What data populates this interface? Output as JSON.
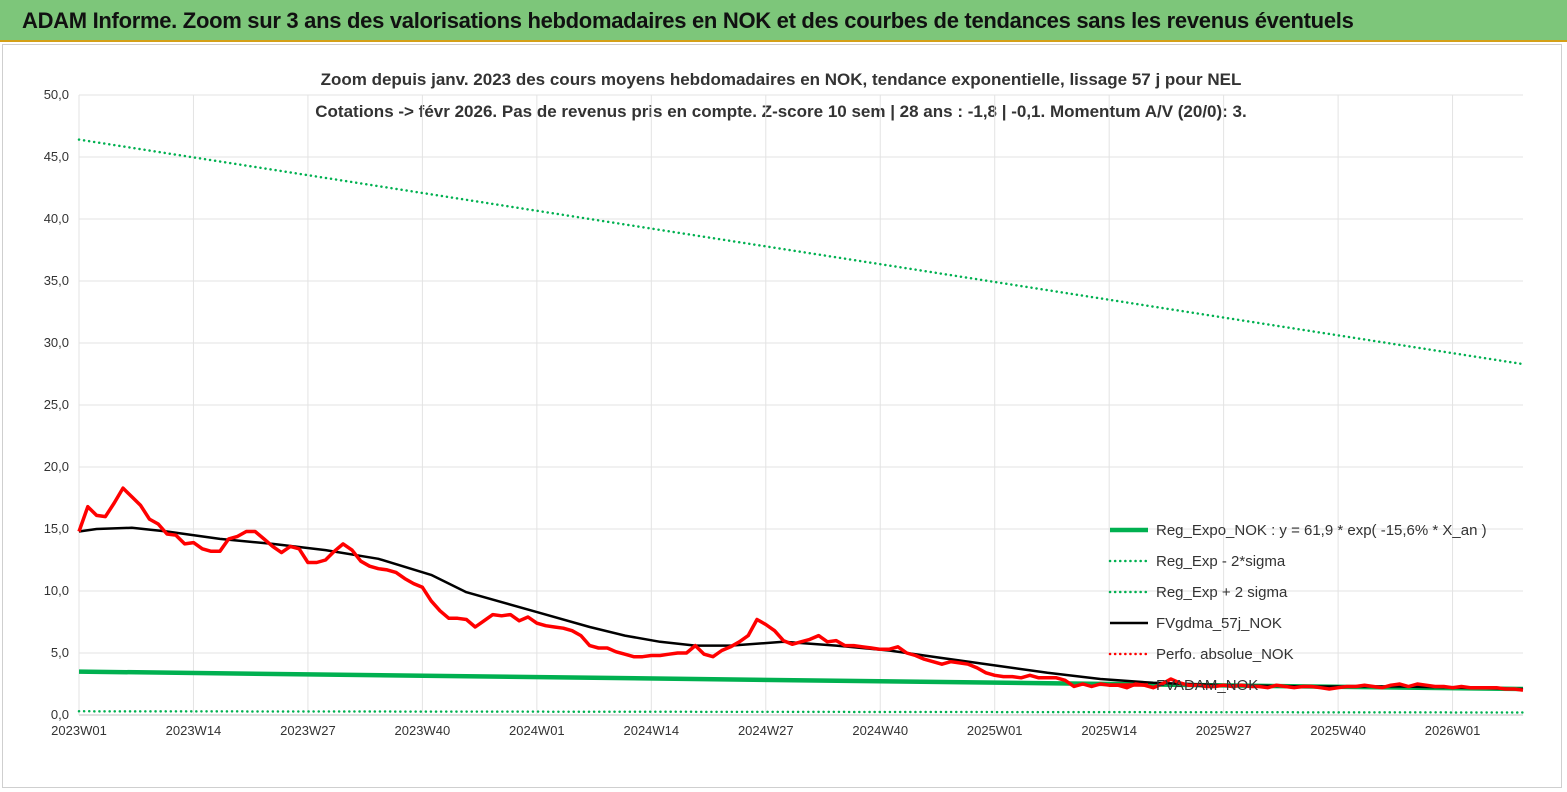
{
  "banner": {
    "title": "ADAM Informe. Zoom sur 3 ans des valorisations hebdomadaires en NOK et des courbes de tendances sans les revenus éventuels"
  },
  "chart_data": {
    "type": "line",
    "title_line1": "Zoom depuis janv. 2023 des cours moyens hebdomadaires en NOK, tendance exponentielle, lissage 57 j pour NEL",
    "title_line2": "Cotations -> févr 2026.  Pas de revenus pris en compte. Z-score 10 sem  | 28 ans : -1,8 | -0,1. Momentum A/V (20/0): 3.",
    "ylim": [
      0,
      50
    ],
    "y_ticks": [
      "0,0",
      "5,0",
      "10,0",
      "15,0",
      "20,0",
      "25,0",
      "30,0",
      "35,0",
      "40,0",
      "45,0",
      "50,0"
    ],
    "x_ticks": [
      "2023W01",
      "2023W14",
      "2023W27",
      "2023W40",
      "2024W01",
      "2024W14",
      "2024W27",
      "2024W40",
      "2025W01",
      "2025W14",
      "2025W27",
      "2025W40",
      "2026W01"
    ],
    "n_weeks": 165,
    "grid": true,
    "legend_position": "bottom-right",
    "series": [
      {
        "name": "Reg_Expo_NOK : y = 61,9 * exp( -15,6% *  X_an )",
        "color": "#00b050",
        "style": "solid",
        "width": 4.5,
        "x": [
          0,
          164
        ],
        "y": [
          3.5,
          2.1
        ]
      },
      {
        "name": "Reg_Exp - 2*sigma",
        "color": "#00b050",
        "style": "dotted",
        "width": 2.5,
        "x": [
          0,
          164
        ],
        "y": [
          0.3,
          0.2
        ]
      },
      {
        "name": "Reg_Exp + 2 sigma",
        "color": "#00b050",
        "style": "dotted",
        "width": 2.5,
        "x": [
          0,
          164
        ],
        "y": [
          46.4,
          28.3
        ]
      },
      {
        "name": "FVgdma_57j_NOK",
        "color": "#000000",
        "style": "solid",
        "width": 2.5,
        "x": [
          0,
          2,
          6,
          10,
          16,
          22,
          28,
          34,
          40,
          44,
          52,
          58,
          62,
          66,
          70,
          74,
          80,
          86,
          92,
          98,
          104,
          110,
          116,
          122,
          130,
          140,
          150,
          164
        ],
        "y": [
          14.8,
          15.0,
          15.1,
          14.8,
          14.2,
          13.8,
          13.3,
          12.6,
          11.3,
          9.9,
          8.3,
          7.1,
          6.4,
          5.9,
          5.6,
          5.6,
          5.9,
          5.6,
          5.2,
          4.6,
          4.0,
          3.4,
          2.9,
          2.6,
          2.4,
          2.3,
          2.3,
          2.1
        ]
      },
      {
        "name": "Perfo. absolue_NOK",
        "color": "#ff0000",
        "style": "dotted",
        "width": 2.5,
        "x": [],
        "y": []
      },
      {
        "name": "FVADAM_NOK",
        "color": "#ff0000",
        "style": "solid",
        "width": 3.5,
        "x": [
          0,
          1,
          2,
          3,
          4,
          5,
          6,
          7,
          8,
          9,
          10,
          11,
          12,
          13,
          14,
          15,
          16,
          17,
          18,
          19,
          20,
          21,
          22,
          23,
          24,
          25,
          26,
          27,
          28,
          29,
          30,
          31,
          32,
          33,
          34,
          35,
          36,
          37,
          38,
          39,
          40,
          41,
          42,
          43,
          44,
          45,
          46,
          47,
          48,
          49,
          50,
          51,
          52,
          53,
          54,
          55,
          56,
          57,
          58,
          59,
          60,
          61,
          62,
          63,
          64,
          65,
          66,
          67,
          68,
          69,
          70,
          71,
          72,
          73,
          74,
          75,
          76,
          77,
          78,
          79,
          80,
          81,
          82,
          83,
          84,
          85,
          86,
          87,
          88,
          89,
          90,
          91,
          92,
          93,
          94,
          95,
          96,
          97,
          98,
          99,
          100,
          101,
          102,
          103,
          104,
          105,
          106,
          107,
          108,
          109,
          110,
          111,
          112,
          113,
          114,
          115,
          116,
          117,
          118,
          119,
          120,
          121,
          122,
          123,
          124,
          125,
          126,
          127,
          128,
          129,
          130,
          131,
          132,
          133,
          134,
          135,
          136,
          137,
          138,
          139,
          140,
          141,
          142,
          143,
          144,
          145,
          146,
          147,
          148,
          149,
          150,
          151,
          152,
          153,
          154,
          155,
          156,
          157,
          158,
          159,
          160,
          161,
          162,
          163,
          164
        ],
        "y": [
          14.8,
          16.8,
          16.1,
          16.0,
          17.1,
          18.3,
          17.6,
          16.9,
          15.8,
          15.4,
          14.6,
          14.5,
          13.8,
          13.9,
          13.4,
          13.2,
          13.2,
          14.2,
          14.4,
          14.8,
          14.8,
          14.2,
          13.6,
          13.1,
          13.6,
          13.4,
          12.3,
          12.3,
          12.5,
          13.2,
          13.8,
          13.3,
          12.4,
          12.0,
          11.8,
          11.7,
          11.5,
          11.0,
          10.6,
          10.3,
          9.2,
          8.4,
          7.8,
          7.8,
          7.7,
          7.1,
          7.6,
          8.1,
          8.0,
          8.1,
          7.6,
          7.9,
          7.4,
          7.2,
          7.1,
          7.0,
          6.8,
          6.4,
          5.6,
          5.4,
          5.4,
          5.1,
          4.9,
          4.7,
          4.7,
          4.8,
          4.8,
          4.9,
          5.0,
          5.0,
          5.6,
          4.9,
          4.7,
          5.2,
          5.5,
          5.9,
          6.4,
          7.7,
          7.3,
          6.8,
          6.0,
          5.7,
          5.9,
          6.1,
          6.4,
          5.9,
          6.0,
          5.6,
          5.6,
          5.5,
          5.4,
          5.3,
          5.3,
          5.5,
          5.0,
          4.8,
          4.5,
          4.3,
          4.1,
          4.3,
          4.2,
          4.1,
          3.8,
          3.4,
          3.2,
          3.1,
          3.1,
          3.0,
          3.2,
          3.0,
          3.0,
          3.0,
          2.8,
          2.3,
          2.5,
          2.3,
          2.5,
          2.4,
          2.4,
          2.2,
          2.5,
          2.4,
          2.2,
          2.5,
          2.9,
          2.6,
          2.4,
          2.4,
          2.3,
          2.3,
          2.4,
          2.3,
          2.4,
          2.3,
          2.3,
          2.2,
          2.4,
          2.3,
          2.2,
          2.3,
          2.3,
          2.2,
          2.1,
          2.2,
          2.3,
          2.3,
          2.4,
          2.3,
          2.2,
          2.4,
          2.5,
          2.3,
          2.5,
          2.4,
          2.3,
          2.3,
          2.2,
          2.3,
          2.2,
          2.2,
          2.2,
          2.2,
          2.1,
          2.1,
          2.0
        ]
      }
    ]
  }
}
